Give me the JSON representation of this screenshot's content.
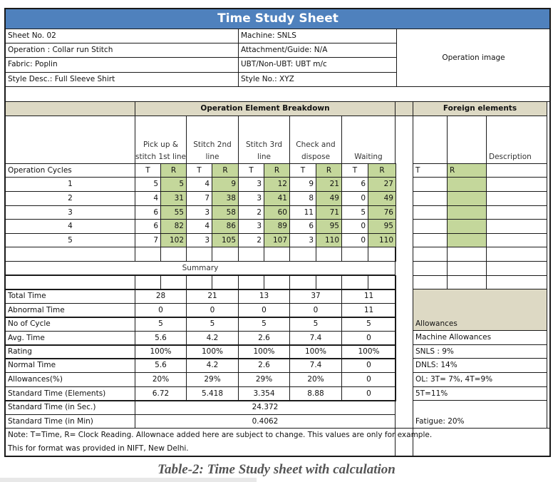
{
  "title": "Time Study Sheet",
  "info": {
    "sheet_no": "Sheet No. 02",
    "operation": "Operation : Collar run Stitch",
    "fabric": "Fabric: Poplin",
    "style_desc": "Style Desc.: Full Sleeve Shirt",
    "machine": "Machine: SNLS",
    "attachment": "Attachment/Guide: N/A",
    "ubt": "UBT/Non-UBT: UBT m/c",
    "style_no": "Style No.: XYZ",
    "operation_image": "Operation image"
  },
  "breakdown": {
    "header": "Operation Element Breakdown",
    "elements": [
      "Pick up & stitch 1st line",
      "Stitch 2nd line",
      "Stitch 3rd line",
      "Check and dispose",
      "Waiting"
    ],
    "cycles_label": "Operation Cycles",
    "t_label": "T",
    "r_label": "R",
    "rows": [
      {
        "cycle": "1",
        "values": [
          "5",
          "5",
          "4",
          "9",
          "3",
          "12",
          "9",
          "21",
          "6",
          "27"
        ]
      },
      {
        "cycle": "2",
        "values": [
          "4",
          "31",
          "7",
          "38",
          "3",
          "41",
          "8",
          "49",
          "0",
          "49"
        ]
      },
      {
        "cycle": "3",
        "values": [
          "6",
          "55",
          "3",
          "58",
          "2",
          "60",
          "11",
          "71",
          "5",
          "76"
        ]
      },
      {
        "cycle": "4",
        "values": [
          "6",
          "82",
          "4",
          "86",
          "3",
          "89",
          "6",
          "95",
          "0",
          "95"
        ]
      },
      {
        "cycle": "5",
        "values": [
          "7",
          "102",
          "3",
          "105",
          "2",
          "107",
          "3",
          "110",
          "0",
          "110"
        ]
      }
    ]
  },
  "foreign": {
    "header": "Foreign elements",
    "t_label": "T",
    "r_label": "R",
    "description_label": "Description"
  },
  "summary": {
    "header": "Summary",
    "rows": [
      {
        "label": "Total Time",
        "values": [
          "28",
          "21",
          "13",
          "37",
          "11"
        ]
      },
      {
        "label": "Abnormal Time",
        "values": [
          "0",
          "0",
          "0",
          "0",
          "11"
        ]
      },
      {
        "label": "No of Cycle",
        "values": [
          "5",
          "5",
          "5",
          "5",
          "5"
        ]
      },
      {
        "label": "Avg. Time",
        "values": [
          "5.6",
          "4.2",
          "2.6",
          "7.4",
          "0"
        ]
      },
      {
        "label": "Rating",
        "values": [
          "100%",
          "100%",
          "100%",
          "100%",
          "100%"
        ]
      },
      {
        "label": "Normal Time",
        "values": [
          "5.6",
          "4.2",
          "2.6",
          "7.4",
          "0"
        ]
      },
      {
        "label": "Allowances(%)",
        "values": [
          "20%",
          "29%",
          "29%",
          "20%",
          "0"
        ]
      },
      {
        "label": "Standard Time (Elements)",
        "values": [
          "6.72",
          "5.418",
          "3.354",
          "8.88",
          "0"
        ]
      }
    ],
    "std_sec_label": "Standard Time (in Sec.)",
    "std_sec_value": "24.372",
    "std_min_label": "Standard Time (in Min)",
    "std_min_value": "0.4062"
  },
  "allowances": {
    "header": "Allowances",
    "items": [
      "Machine Allowances",
      "SNLS : 9%",
      "DNLS: 14%",
      "OL: 3T= 7%, 4T=9%",
      "5T=11%"
    ],
    "fatigue": "Fatigue: 20%"
  },
  "notes": [
    "Note: T=Time, R= Clock Reading. Allownace added here are subject to change. This values are only for example.",
    "This for format was provided in NIFT, New Delhi."
  ],
  "caption": "Table-2: Time Study sheet with calculation",
  "colors": {
    "title_bg": "#4F81BD",
    "reading_green": "#C4D79B",
    "header_tan": "#DDD9C4"
  }
}
